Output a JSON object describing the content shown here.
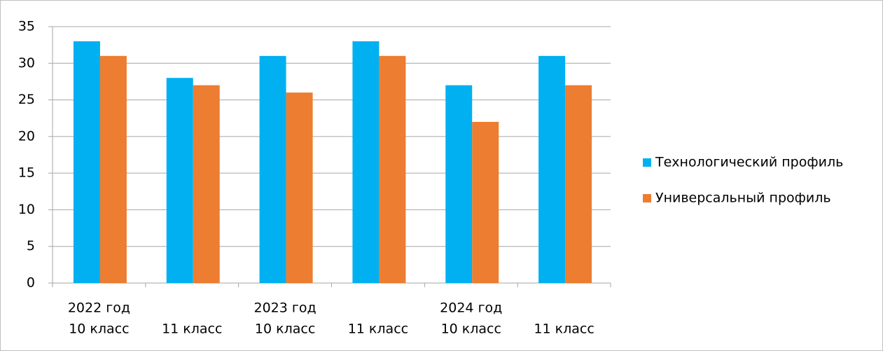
{
  "chart_data": {
    "type": "bar",
    "categories": [
      [
        "2022 год",
        "10 класс"
      ],
      [
        null,
        "11 класс"
      ],
      [
        "2023 год",
        "10 класс"
      ],
      [
        null,
        "11 класс"
      ],
      [
        "2024 год",
        "10 класс"
      ],
      [
        null,
        "11 класс"
      ]
    ],
    "series": [
      {
        "name": "Технологический профиль",
        "color": "#00b0f0",
        "values": [
          33,
          28,
          31,
          33,
          27,
          31
        ]
      },
      {
        "name": "Универсальный профиль",
        "color": "#ed7d31",
        "values": [
          31,
          27,
          26,
          31,
          22,
          27
        ]
      }
    ],
    "ylim": [
      0,
      35
    ],
    "yticks": [
      0,
      5,
      10,
      15,
      20,
      25,
      30,
      35
    ],
    "grid": true,
    "legend": "right"
  }
}
